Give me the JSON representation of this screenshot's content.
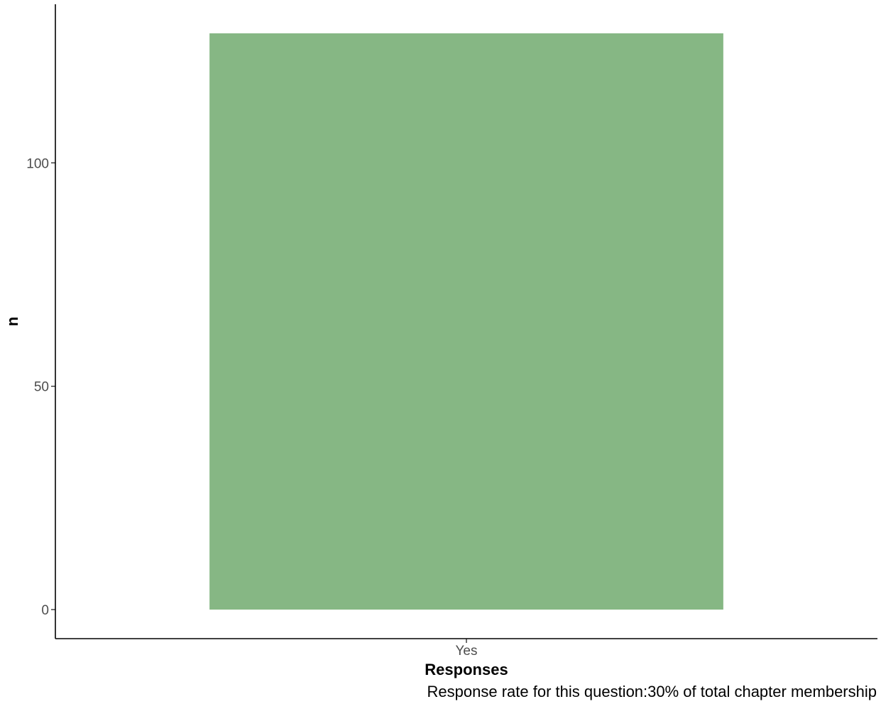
{
  "chart_data": {
    "type": "bar",
    "categories": [
      "Yes"
    ],
    "values": [
      129
    ],
    "xlabel": "Responses",
    "ylabel": "n",
    "caption": "Response rate for this question:30% of total chapter membership",
    "ylim": [
      -6.5,
      135.5
    ],
    "yticks": [
      0,
      50,
      100
    ],
    "ytick_labels": [
      "0",
      "50",
      "100"
    ],
    "grid": false,
    "legend": "none",
    "bar_color": "#86b784"
  }
}
